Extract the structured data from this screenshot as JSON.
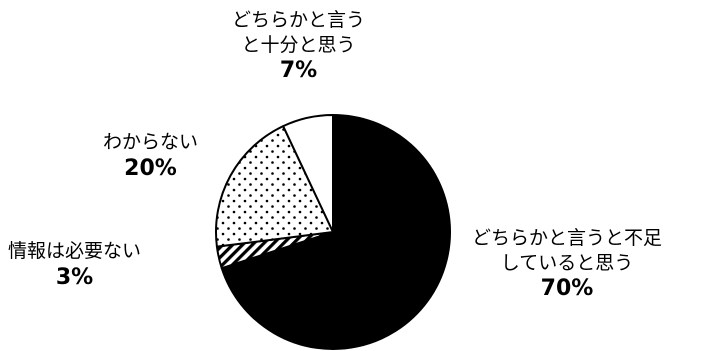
{
  "chart_data": {
    "type": "pie",
    "slices": [
      {
        "label_lines": [
          "どちらかと言うと不足",
          "していると思う"
        ],
        "percent_label": "70%",
        "value": 70,
        "fill": "solid-black"
      },
      {
        "label_lines": [
          "情報は必要ない"
        ],
        "percent_label": "3%",
        "value": 3,
        "fill": "diagonal-hatch"
      },
      {
        "label_lines": [
          "わからない"
        ],
        "percent_label": "20%",
        "value": 20,
        "fill": "dots"
      },
      {
        "label_lines": [
          "どちらかと言う",
          "と十分と思う"
        ],
        "percent_label": "7%",
        "value": 7,
        "fill": "white"
      }
    ],
    "start_angle": "12 o'clock",
    "direction": "clockwise",
    "legend": "none",
    "colors": {
      "stroke": "#000000",
      "solid": "#000000",
      "background": "#ffffff"
    }
  }
}
